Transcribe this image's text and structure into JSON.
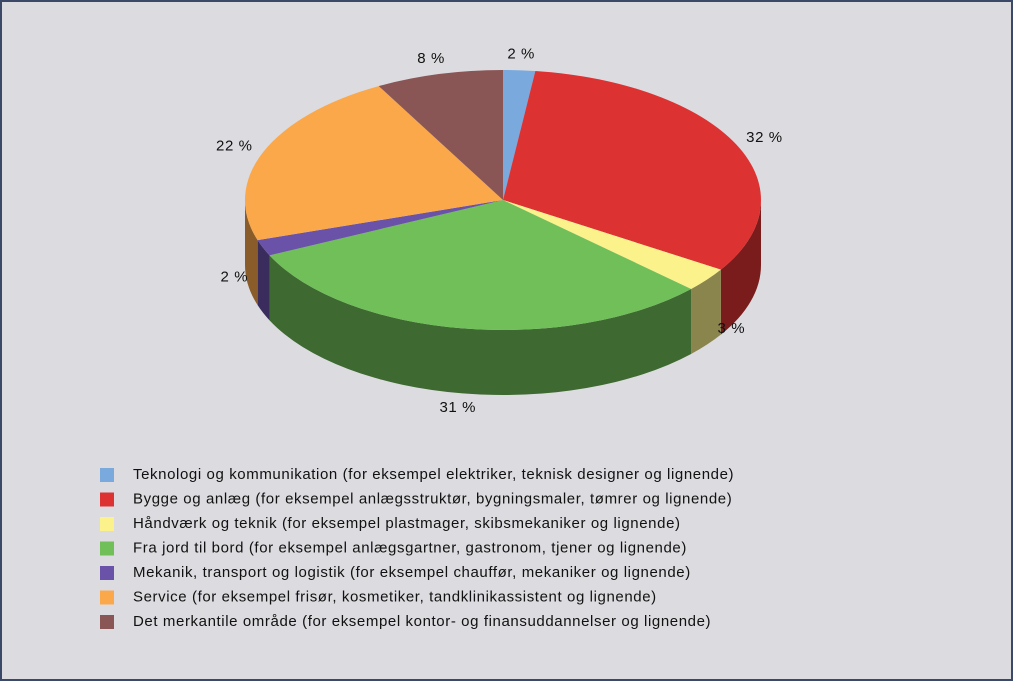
{
  "chart_data": {
    "type": "pie",
    "categories": [
      "Teknologi og kommunikation (for eksempel elektriker, teknisk designer og lignende)",
      "Bygge og anlæg (for eksempel anlægsstruktør, bygningsmaler, tømrer og lignende)",
      "Håndværk og teknik (for eksempel plastmager, skibsmekaniker og lignende)",
      "Fra jord til bord (for eksempel anlægsgartner, gastronom, tjener og lignende)",
      "Mekanik, transport og logistik (for eksempel chauffør, mekaniker og lignende)",
      "Service (for eksempel frisør, kosmetiker, tandklinikassistent og lignende)",
      "Det merkantile område (for eksempel kontor- og finansuddannelser og lignende)"
    ],
    "values": [
      2,
      32,
      3,
      31,
      2,
      22,
      8
    ],
    "value_labels": [
      "2 %",
      "32 %",
      "3 %",
      "31 %",
      "2 %",
      "22 %",
      "8 %"
    ],
    "colors": [
      "#79a9dd",
      "#dd3232",
      "#fbf28c",
      "#70bf59",
      "#6a52a9",
      "#fba84b",
      "#8a5555"
    ],
    "legend": "bottom"
  }
}
